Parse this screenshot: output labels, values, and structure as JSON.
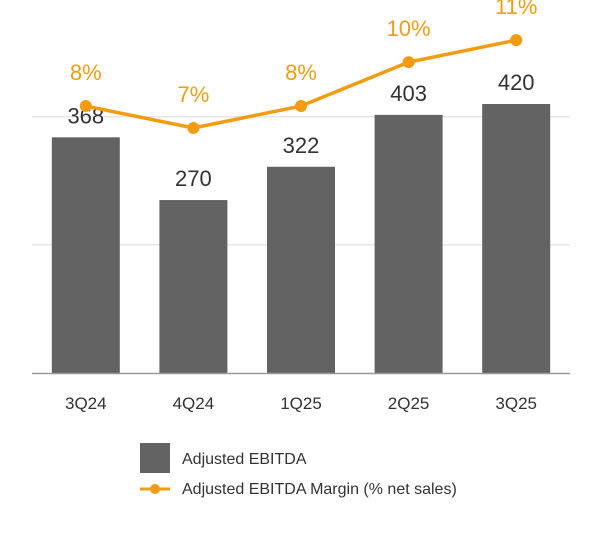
{
  "chart_data": {
    "type": "bar",
    "categories": [
      "3Q24",
      "4Q24",
      "1Q25",
      "2Q25",
      "3Q25"
    ],
    "series": [
      {
        "name": "Adjusted EBITDA",
        "kind": "bar",
        "values": [
          368,
          270,
          322,
          403,
          420
        ],
        "labels": [
          "368",
          "270",
          "322",
          "403",
          "420"
        ],
        "color": "#636363"
      },
      {
        "name": "Adjusted EBITDA Margin (% net sales)",
        "kind": "line",
        "values": [
          8,
          7,
          8,
          10,
          11
        ],
        "labels": [
          "8%",
          "7%",
          "8%",
          "10%",
          "11%"
        ],
        "color": "#F39C12"
      }
    ],
    "title": "",
    "xlabel": "",
    "ylabel": "",
    "ylim": [
      0,
      600
    ],
    "grid": true,
    "legend_position": "bottom"
  },
  "legend": {
    "bar_label": "Adjusted EBITDA",
    "line_label": "Adjusted EBITDA Margin (% net sales)"
  },
  "colors": {
    "bar": "#636363",
    "line": "#F39C12",
    "grid": "#E6E6E6",
    "axis": "#9A9A9A",
    "text": "#333333"
  }
}
